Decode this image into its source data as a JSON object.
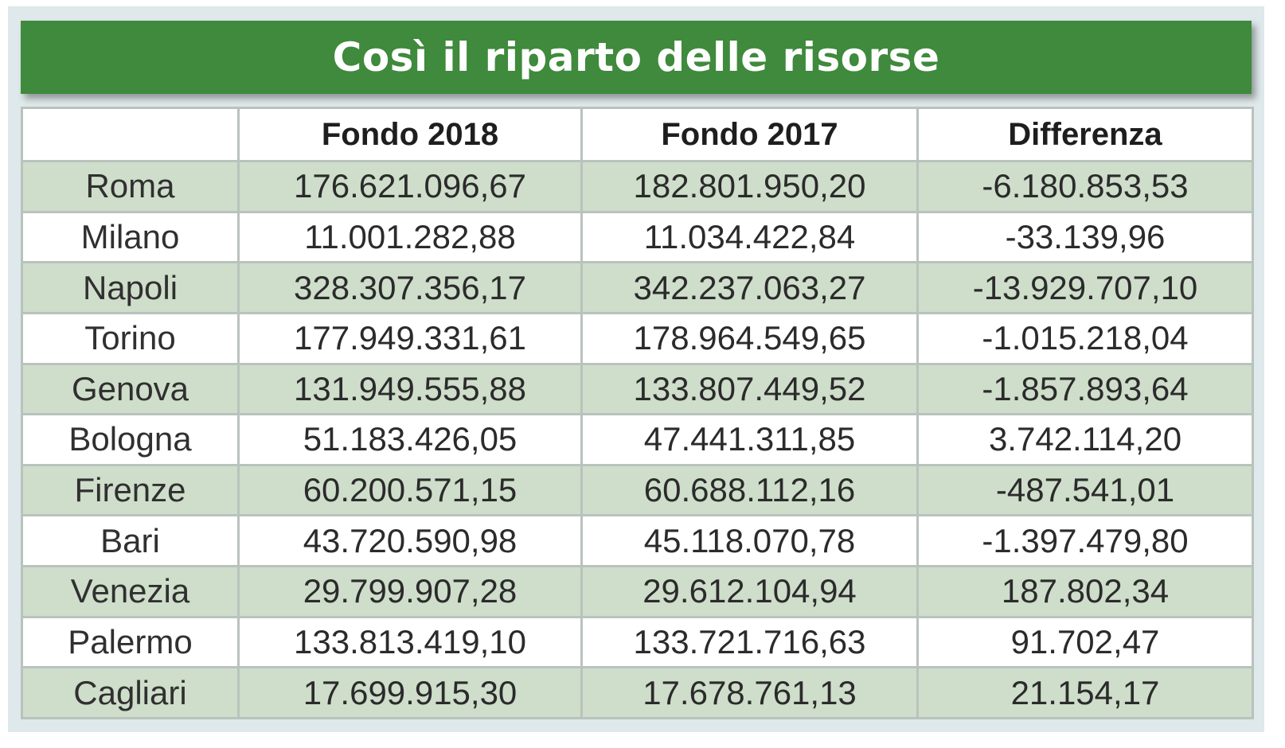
{
  "title": "Così il riparto delle risorse",
  "table": {
    "headers": [
      "",
      "Fondo 2018",
      "Fondo 2017",
      "Differenza"
    ],
    "rows": [
      [
        "Roma",
        "176.621.096,67",
        "182.801.950,20",
        "-6.180.853,53"
      ],
      [
        "Milano",
        "11.001.282,88",
        "11.034.422,84",
        "-33.139,96"
      ],
      [
        "Napoli",
        "328.307.356,17",
        "342.237.063,27",
        "-13.929.707,10"
      ],
      [
        "Torino",
        "177.949.331,61",
        "178.964.549,65",
        "-1.015.218,04"
      ],
      [
        "Genova",
        "131.949.555,88",
        "133.807.449,52",
        "-1.857.893,64"
      ],
      [
        "Bologna",
        "51.183.426,05",
        "47.441.311,85",
        "3.742.114,20"
      ],
      [
        "Firenze",
        "60.200.571,15",
        "60.688.112,16",
        "-487.541,01"
      ],
      [
        "Bari",
        "43.720.590,98",
        "45.118.070,78",
        "-1.397.479,80"
      ],
      [
        "Venezia",
        "29.799.907,28",
        "29.612.104,94",
        "187.802,34"
      ],
      [
        "Palermo",
        "133.813.419,10",
        "133.721.716,63",
        "91.702,47"
      ],
      [
        "Cagliari",
        "17.699.915,30",
        "17.678.761,13",
        "21.154,17"
      ]
    ]
  },
  "colors": {
    "banner": "#3f8a3c",
    "row_alt": "#cfddcb",
    "border": "#b9c3bd"
  }
}
